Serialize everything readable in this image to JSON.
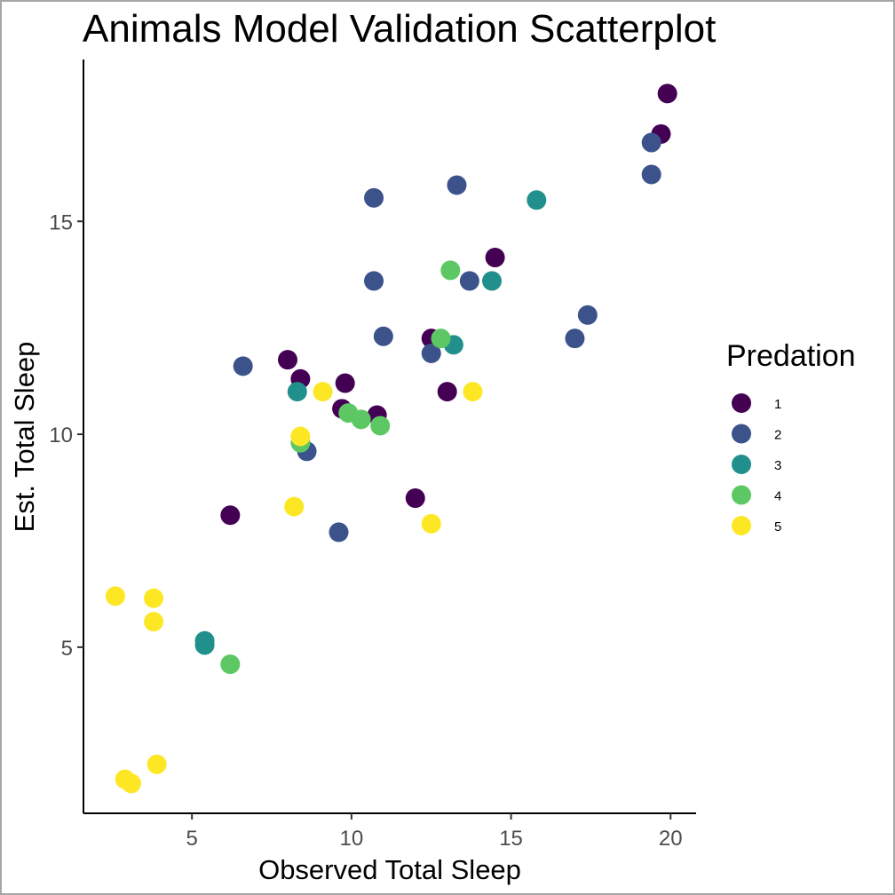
{
  "chart_data": {
    "type": "scatter",
    "title": "Animals Model Validation Scatterplot",
    "xlabel": "Observed Total Sleep",
    "ylabel": "Est. Total Sleep",
    "xlim": [
      1.6,
      20.8
    ],
    "ylim": [
      1.1,
      18.8
    ],
    "xticks": [
      5,
      10,
      15,
      20
    ],
    "yticks": [
      5,
      10,
      15
    ],
    "grid": false,
    "legend": {
      "title": "Predation",
      "position": "right"
    },
    "series": [
      {
        "name": "1",
        "color": "#440154",
        "points": [
          {
            "x": 19.9,
            "y": 18.0
          },
          {
            "x": 19.7,
            "y": 17.05
          },
          {
            "x": 14.5,
            "y": 14.15
          },
          {
            "x": 12.5,
            "y": 12.25
          },
          {
            "x": 8.0,
            "y": 11.75
          },
          {
            "x": 8.4,
            "y": 11.3
          },
          {
            "x": 9.8,
            "y": 11.2
          },
          {
            "x": 13.0,
            "y": 11.0
          },
          {
            "x": 9.7,
            "y": 10.6
          },
          {
            "x": 10.8,
            "y": 10.45
          },
          {
            "x": 12.0,
            "y": 8.5
          },
          {
            "x": 6.2,
            "y": 8.1
          }
        ]
      },
      {
        "name": "2",
        "color": "#3B528B",
        "points": [
          {
            "x": 19.4,
            "y": 16.85
          },
          {
            "x": 19.4,
            "y": 16.1
          },
          {
            "x": 13.3,
            "y": 15.85
          },
          {
            "x": 10.7,
            "y": 15.55
          },
          {
            "x": 10.7,
            "y": 13.6
          },
          {
            "x": 13.7,
            "y": 13.6
          },
          {
            "x": 17.4,
            "y": 12.8
          },
          {
            "x": 11.0,
            "y": 12.3
          },
          {
            "x": 17.0,
            "y": 12.25
          },
          {
            "x": 12.5,
            "y": 11.9
          },
          {
            "x": 6.6,
            "y": 11.6
          },
          {
            "x": 8.6,
            "y": 9.6
          },
          {
            "x": 9.6,
            "y": 7.7
          }
        ]
      },
      {
        "name": "3",
        "color": "#21908C",
        "points": [
          {
            "x": 15.8,
            "y": 15.5
          },
          {
            "x": 14.4,
            "y": 13.6
          },
          {
            "x": 13.2,
            "y": 12.1
          },
          {
            "x": 8.3,
            "y": 11.0
          },
          {
            "x": 5.4,
            "y": 5.15
          },
          {
            "x": 5.4,
            "y": 5.05
          }
        ]
      },
      {
        "name": "4",
        "color": "#5DC863",
        "points": [
          {
            "x": 13.1,
            "y": 13.85
          },
          {
            "x": 12.8,
            "y": 12.25
          },
          {
            "x": 9.9,
            "y": 10.5
          },
          {
            "x": 10.3,
            "y": 10.35
          },
          {
            "x": 10.9,
            "y": 10.2
          },
          {
            "x": 8.4,
            "y": 9.8
          },
          {
            "x": 6.2,
            "y": 4.6
          }
        ]
      },
      {
        "name": "5",
        "color": "#FDE725",
        "points": [
          {
            "x": 9.1,
            "y": 11.0
          },
          {
            "x": 13.8,
            "y": 11.0
          },
          {
            "x": 8.4,
            "y": 9.95
          },
          {
            "x": 8.2,
            "y": 8.3
          },
          {
            "x": 12.5,
            "y": 7.9
          },
          {
            "x": 2.6,
            "y": 6.2
          },
          {
            "x": 3.8,
            "y": 6.15
          },
          {
            "x": 3.8,
            "y": 5.6
          },
          {
            "x": 3.9,
            "y": 2.25
          },
          {
            "x": 2.9,
            "y": 1.9
          },
          {
            "x": 3.1,
            "y": 1.8
          }
        ]
      }
    ]
  }
}
